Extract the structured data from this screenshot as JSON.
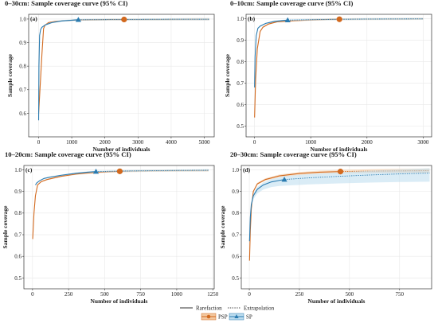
{
  "colors": {
    "psp": "#d2691e",
    "sp": "#2a7bb0",
    "psp_band": "#f3c8a0",
    "sp_band": "#bcdcef",
    "grid": "#e8e8e8",
    "frame": "#333333"
  },
  "legend": {
    "rarefaction": "Rarefaction",
    "extrapolation": "Extrapolation",
    "psp": "PSP",
    "sp": "SP"
  },
  "chart_data": [
    {
      "type": "line",
      "panel_tag": "(a)",
      "title": "0–30cm: Sample coverage curve (95% CI)",
      "xlabel": "Number of individuals",
      "ylabel": "Sample coverage",
      "xlim": [
        -300,
        5300
      ],
      "ylim": [
        0.5,
        1.02
      ],
      "xticks": [
        "0",
        "1000",
        "2000",
        "3000",
        "4000",
        "5000"
      ],
      "yticks": [
        "0.6",
        "0.7",
        "0.8",
        "0.9",
        "1.0"
      ],
      "grid": true,
      "series": [
        {
          "name": "PSP",
          "marker": "circle",
          "observed": {
            "x": 2580,
            "y": 0.998
          },
          "rarefaction": {
            "x": [
              1,
              100,
              150,
              200,
              300,
              500,
              800,
              1200,
              1700,
              2200,
              2580
            ],
            "y": [
              0.6,
              0.85,
              0.96,
              0.975,
              0.985,
              0.99,
              0.993,
              0.996,
              0.997,
              0.998,
              0.998
            ]
          },
          "extrapolation": {
            "x": [
              2580,
              3500,
              4500,
              5150
            ],
            "y": [
              0.998,
              0.998,
              0.999,
              0.999
            ]
          }
        },
        {
          "name": "SP",
          "marker": "triangle",
          "observed": {
            "x": 1200,
            "y": 0.997
          },
          "rarefaction": {
            "x": [
              1,
              10,
              30,
              60,
              100,
              200,
              400,
              700,
              1000,
              1200
            ],
            "y": [
              0.57,
              0.8,
              0.93,
              0.955,
              0.965,
              0.975,
              0.985,
              0.992,
              0.995,
              0.997
            ]
          },
          "extrapolation": {
            "x": [
              1200,
              2500,
              4000,
              5150
            ],
            "y": [
              0.997,
              0.998,
              0.999,
              0.999
            ]
          }
        }
      ]
    },
    {
      "type": "line",
      "panel_tag": "(b)",
      "title": "0–10cm: Sample coverage curve (95% CI)",
      "xlabel": "Number of individuals",
      "ylabel": "Sample coverage",
      "xlim": [
        -150,
        3150
      ],
      "ylim": [
        0.45,
        1.02
      ],
      "xticks": [
        "0",
        "1000",
        "2000",
        "3000"
      ],
      "yticks": [
        "0.5",
        "0.6",
        "0.7",
        "0.8",
        "0.9",
        "1.0"
      ],
      "grid": true,
      "series": [
        {
          "name": "PSP",
          "marker": "circle",
          "observed": {
            "x": 1510,
            "y": 0.997
          },
          "rarefaction": {
            "x": [
              1,
              20,
              50,
              100,
              150,
              250,
              400,
              700,
              1000,
              1300,
              1510
            ],
            "y": [
              0.54,
              0.72,
              0.86,
              0.94,
              0.96,
              0.975,
              0.985,
              0.99,
              0.994,
              0.996,
              0.997
            ]
          },
          "extrapolation": {
            "x": [
              1510,
              2200,
              3000
            ],
            "y": [
              0.997,
              0.998,
              0.999
            ]
          }
        },
        {
          "name": "SP",
          "marker": "triangle",
          "observed": {
            "x": 590,
            "y": 0.993
          },
          "rarefaction": {
            "x": [
              1,
              10,
              30,
              60,
              100,
              200,
              350,
              500,
              590
            ],
            "y": [
              0.68,
              0.82,
              0.92,
              0.955,
              0.965,
              0.978,
              0.987,
              0.991,
              0.993
            ]
          },
          "extrapolation": {
            "x": [
              590,
              1200,
              2000,
              3000
            ],
            "y": [
              0.993,
              0.996,
              0.998,
              0.999
            ]
          }
        }
      ]
    },
    {
      "type": "line",
      "panel_tag": "(c)",
      "title": "10–20cm: Sample coverage curve (95% CI)",
      "xlabel": "Number of individuals",
      "ylabel": "Sample coverage",
      "xlim": [
        -60,
        1260
      ],
      "ylim": [
        0.45,
        1.02
      ],
      "xticks": [
        "0",
        "250",
        "500",
        "750",
        "1000",
        "1250"
      ],
      "yticks": [
        "0.5",
        "0.6",
        "0.7",
        "0.8",
        "0.9",
        "1.0"
      ],
      "grid": true,
      "series": [
        {
          "name": "PSP",
          "marker": "circle",
          "observed": {
            "x": 605,
            "y": 0.993
          },
          "rarefaction": {
            "x": [
              1,
              10,
              20,
              35,
              60,
              100,
              200,
              300,
              400,
              500,
              605
            ],
            "y": [
              0.68,
              0.8,
              0.88,
              0.93,
              0.945,
              0.955,
              0.97,
              0.98,
              0.986,
              0.99,
              0.993
            ]
          },
          "extrapolation": {
            "x": [
              605,
              800,
              1000,
              1220
            ],
            "y": [
              0.993,
              0.995,
              0.996,
              0.997
            ]
          }
        },
        {
          "name": "SP",
          "marker": "triangle",
          "observed": {
            "x": 440,
            "y": 0.992
          },
          "rarefaction": {
            "x": [
              20,
              30,
              50,
              80,
              120,
              200,
              300,
              380,
              440
            ],
            "y": [
              0.93,
              0.94,
              0.95,
              0.96,
              0.966,
              0.975,
              0.984,
              0.989,
              0.992
            ]
          },
          "extrapolation": {
            "x": [
              440,
              700,
              1000,
              1220
            ],
            "y": [
              0.992,
              0.995,
              0.997,
              0.998
            ]
          }
        }
      ]
    },
    {
      "type": "line",
      "panel_tag": "(d)",
      "title": "20–30cm: Sample coverage curve (95% CI)",
      "xlabel": "Number of individuals",
      "ylabel": "Sample coverage",
      "xlim": [
        -40,
        910
      ],
      "ylim": [
        0.45,
        1.02
      ],
      "xticks": [
        "0",
        "250",
        "500",
        "750"
      ],
      "yticks": [
        "0.5",
        "0.6",
        "0.7",
        "0.8",
        "0.9",
        "1.0"
      ],
      "grid": true,
      "series": [
        {
          "name": "PSP",
          "marker": "circle",
          "observed": {
            "x": 455,
            "y": 0.992
          },
          "rarefaction": {
            "x": [
              1,
              5,
              10,
              20,
              40,
              80,
              150,
              250,
              350,
              455
            ],
            "y": [
              0.58,
              0.72,
              0.82,
              0.9,
              0.935,
              0.955,
              0.972,
              0.983,
              0.989,
              0.992
            ]
          },
          "extrapolation": {
            "x": [
              455,
              600,
              750,
              900
            ],
            "y": [
              0.992,
              0.994,
              0.995,
              0.996
            ]
          }
        },
        {
          "name": "SP",
          "marker": "triangle",
          "observed": {
            "x": 175,
            "y": 0.955
          },
          "rarefaction": {
            "x": [
              1,
              5,
              10,
              20,
              40,
              70,
              110,
              150,
              175
            ],
            "y": [
              0.67,
              0.78,
              0.84,
              0.88,
              0.91,
              0.93,
              0.944,
              0.951,
              0.955
            ]
          },
          "extrapolation": {
            "x": [
              175,
              300,
              450,
              600,
              750,
              900
            ],
            "y": [
              0.955,
              0.963,
              0.97,
              0.976,
              0.981,
              0.985
            ]
          }
        }
      ]
    }
  ]
}
